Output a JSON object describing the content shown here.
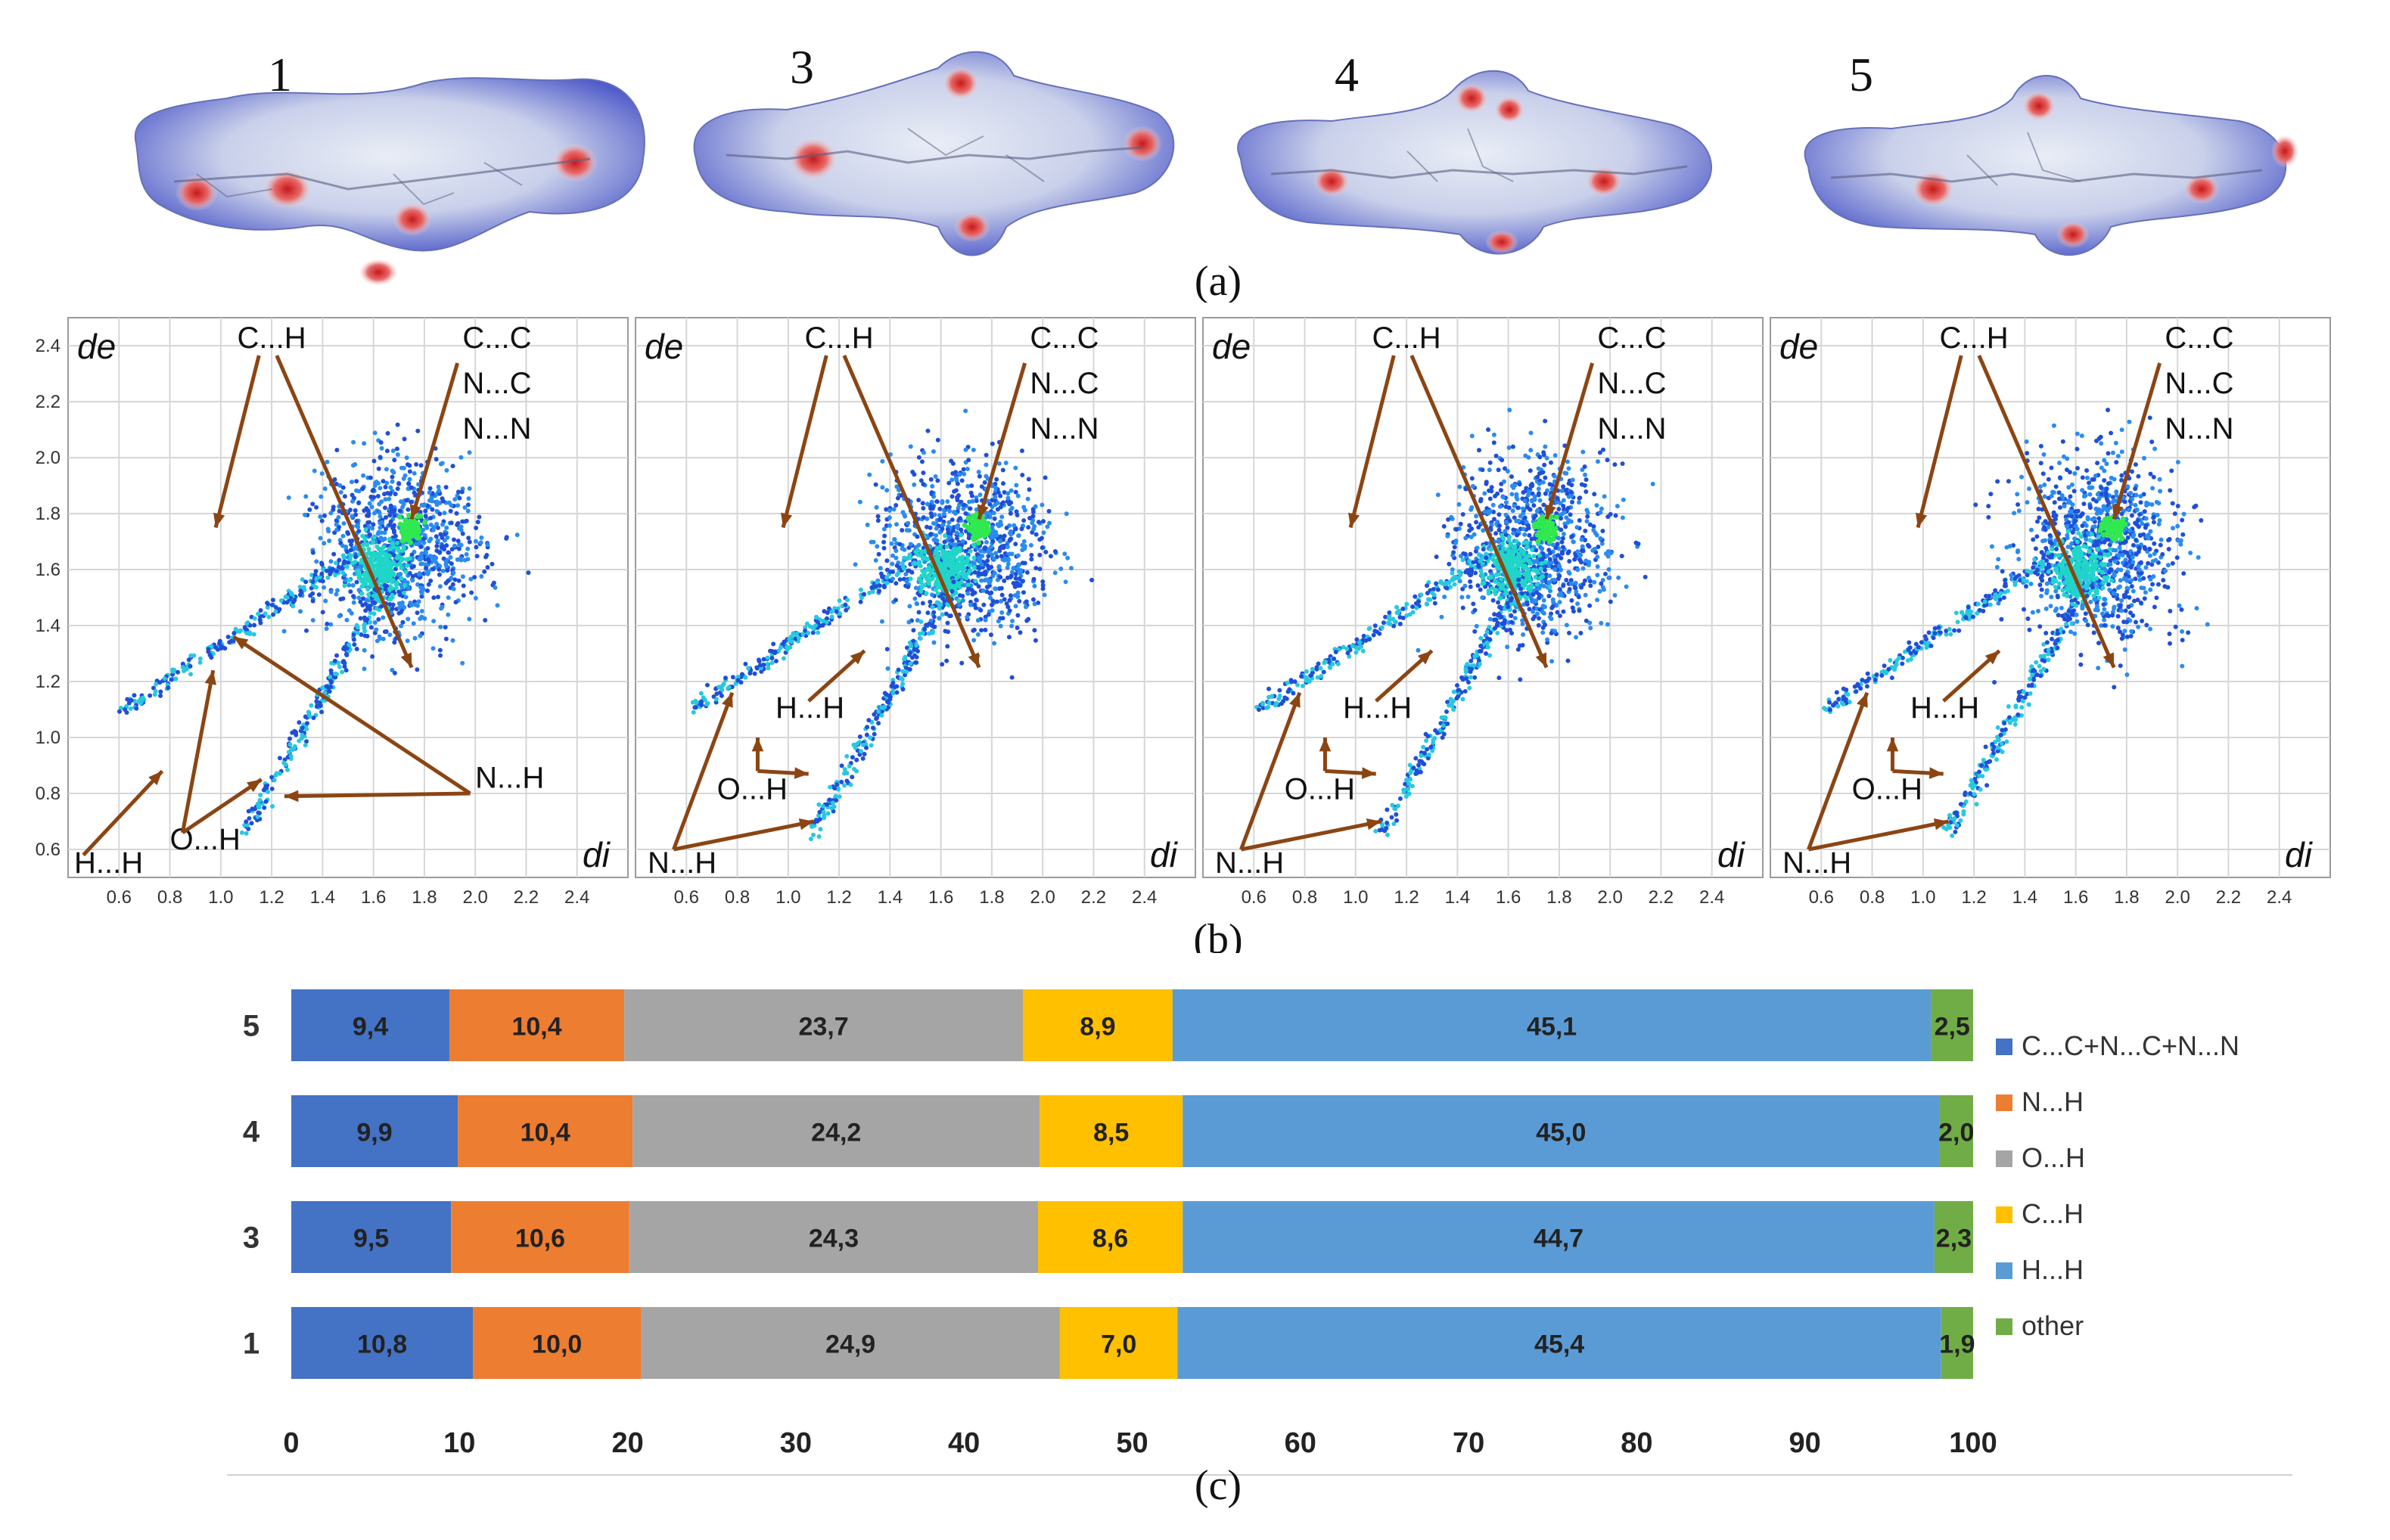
{
  "panel_labels": {
    "a": "(a)",
    "b": "(b)",
    "c": "(c)"
  },
  "surfaces": [
    {
      "label": "1"
    },
    {
      "label": "3"
    },
    {
      "label": "4"
    },
    {
      "label": "5"
    }
  ],
  "fingerprint_plots": [
    {
      "compound": "1",
      "y_axis_label": "de",
      "x_axis_label": "di",
      "y_ticks": [
        "2.4",
        "2.2",
        "2.0",
        "1.8",
        "1.6",
        "1.4",
        "1.2",
        "1.0",
        "0.8",
        "0.6"
      ],
      "x_ticks": [
        "0.6",
        "0.8",
        "1.0",
        "1.2",
        "1.4",
        "1.6",
        "1.8",
        "2.0",
        "2.2",
        "2.4"
      ],
      "annotations": {
        "ch": "C...H",
        "cc": "C...C",
        "nc": "N...C",
        "nn": "N...N",
        "nh": "N...H",
        "hh": "H...H",
        "oh": "O...H"
      }
    },
    {
      "compound": "3",
      "y_axis_label": "de",
      "x_axis_label": "di",
      "x_ticks": [
        "0.6",
        "0.8",
        "1.0",
        "1.2",
        "1.4",
        "1.6",
        "1.8",
        "2.0",
        "2.2",
        "2.4"
      ],
      "annotations": {
        "ch": "C...H",
        "cc": "C...C",
        "nc": "N...C",
        "nn": "N...N",
        "nh": "N...H",
        "hh": "H...H",
        "oh": "O...H"
      }
    },
    {
      "compound": "4",
      "y_axis_label": "de",
      "x_axis_label": "di",
      "x_ticks": [
        "0.6",
        "0.8",
        "1.0",
        "1.2",
        "1.4",
        "1.6",
        "1.8",
        "2.0",
        "2.2",
        "2.4"
      ],
      "annotations": {
        "ch": "C...H",
        "cc": "C...C",
        "nc": "N...C",
        "nn": "N...N",
        "nh": "N...H",
        "hh": "H...H",
        "oh": "O...H"
      }
    },
    {
      "compound": "5",
      "y_axis_label": "de",
      "x_axis_label": "di",
      "x_ticks": [
        "0.6",
        "0.8",
        "1.0",
        "1.2",
        "1.4",
        "1.6",
        "1.8",
        "2.0",
        "2.2",
        "2.4"
      ],
      "annotations": {
        "ch": "C...H",
        "cc": "C...C",
        "nc": "N...C",
        "nn": "N...N",
        "nh": "N...H",
        "hh": "H...H",
        "oh": "O...H"
      }
    }
  ],
  "chart_data": {
    "type": "bar",
    "orientation": "horizontal",
    "stacked": true,
    "categories": [
      "5",
      "4",
      "3",
      "1"
    ],
    "series": [
      {
        "name": "C...C+N...C+N...N",
        "color": "#4472c4",
        "values": [
          9.4,
          9.9,
          9.5,
          10.8
        ],
        "labels": [
          "9,4",
          "9,9",
          "9,5",
          "10,8"
        ]
      },
      {
        "name": "N...H",
        "color": "#ed7d31",
        "values": [
          10.4,
          10.4,
          10.6,
          10.0
        ],
        "labels": [
          "10,4",
          "10,4",
          "10,6",
          "10,0"
        ]
      },
      {
        "name": "O...H",
        "color": "#a5a5a5",
        "values": [
          23.7,
          24.2,
          24.3,
          24.9
        ],
        "labels": [
          "23,7",
          "24,2",
          "24,3",
          "24,9"
        ]
      },
      {
        "name": "C...H",
        "color": "#ffc000",
        "values": [
          8.9,
          8.5,
          8.6,
          7.0
        ],
        "labels": [
          "8,9",
          "8,5",
          "8,6",
          "7,0"
        ]
      },
      {
        "name": "H...H",
        "color": "#5b9bd5",
        "values": [
          45.1,
          45.0,
          44.7,
          45.4
        ],
        "labels": [
          "45,1",
          "45,0",
          "44,7",
          "45,4"
        ]
      },
      {
        "name": "other",
        "color": "#70ad47",
        "values": [
          2.5,
          2.0,
          2.3,
          1.9
        ],
        "labels": [
          "2,5",
          "2,0",
          "2,3",
          "1,9"
        ]
      }
    ],
    "x_ticks": [
      "0",
      "10",
      "20",
      "30",
      "40",
      "50",
      "60",
      "70",
      "80",
      "90",
      "100"
    ],
    "xlim": [
      0,
      100
    ],
    "legend_position": "right"
  }
}
